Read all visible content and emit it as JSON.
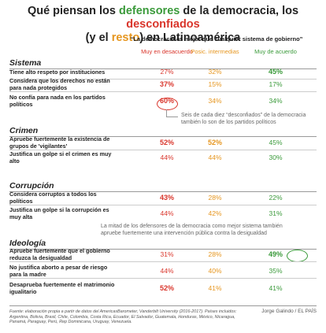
{
  "header": {
    "title": [
      "Qué piensan los ",
      "defensores",
      " de la democracia, los ",
      "desconfiados",
      " (y el ",
      "resto",
      ") en Latinoamérica"
    ],
    "subtitle": "“La democracia es mejor que cualquier sistema de gobierno”",
    "columns": [
      "Muy en desacuerdo",
      "Posic. intermedias",
      "Muy de acuerdo"
    ]
  },
  "sections": [
    {
      "name": "Sistema",
      "rows": [
        {
          "label": "Tiene alto respeto por instituciones",
          "values": [
            "27%",
            "32%",
            "45%"
          ]
        },
        {
          "label": "Considera que los derechos no están para nada protegidos",
          "values": [
            "37%",
            "15%",
            "17%"
          ]
        },
        {
          "label": "No confía para nada en los partidos políticos",
          "values": [
            "60%",
            "34%",
            "34%"
          ]
        }
      ]
    },
    {
      "name": "Crimen",
      "rows": [
        {
          "label": "Apruebe fuertemente la existencia de grupos de 'vigilantes'",
          "values": [
            "52%",
            "52%",
            "45%"
          ]
        },
        {
          "label": "Justifica un golpe si el crimen es muy alto",
          "values": [
            "44%",
            "44%",
            "30%"
          ]
        }
      ]
    },
    {
      "name": "Corrupción",
      "rows": [
        {
          "label": "Considera corruptos a todos los políticos",
          "values": [
            "43%",
            "28%",
            "22%"
          ]
        },
        {
          "label": "Justifica un golpe si la corrupción es muy alta",
          "values": [
            "44%",
            "42%",
            "31%"
          ]
        }
      ]
    },
    {
      "name": "Ideología",
      "rows": [
        {
          "label": "Apruebe fuertemente que el gobierno reduzca la desigualdad",
          "values": [
            "31%",
            "28%",
            "49%"
          ]
        },
        {
          "label": "No justifica aborto a pesar de riesgo para la madre",
          "values": [
            "44%",
            "40%",
            "35%"
          ]
        },
        {
          "label": "Desaprueba fuertemente el matrimonio igualitario",
          "values": [
            "52%",
            "41%",
            "41%"
          ]
        }
      ]
    }
  ],
  "annotations": [
    "Seis de cada diez “desconfiados” de la democracia también lo son de los partidos políticos",
    "La mitad de los defensores de la democracia como mejor sistema también apruebe fuertemente una intervención pública contra la desigualdad"
  ],
  "footer": {
    "source": "Fuente: elaboración propia a partir de datos del AmericasBarometer, Vanderbilt University (2016-2017). Países incluidos: Argentina, Bolivia, Brasil, Chile, Colombia, Costa Rica, Ecuador, El Salvador, Guatemala, Honduras, México, Nicaragua, Panamá, Paraguay, Perú, Rep Dominicana, Uruguay, Venezuela.",
    "credit": "Jorge Galindo / EL PAÍS"
  }
}
